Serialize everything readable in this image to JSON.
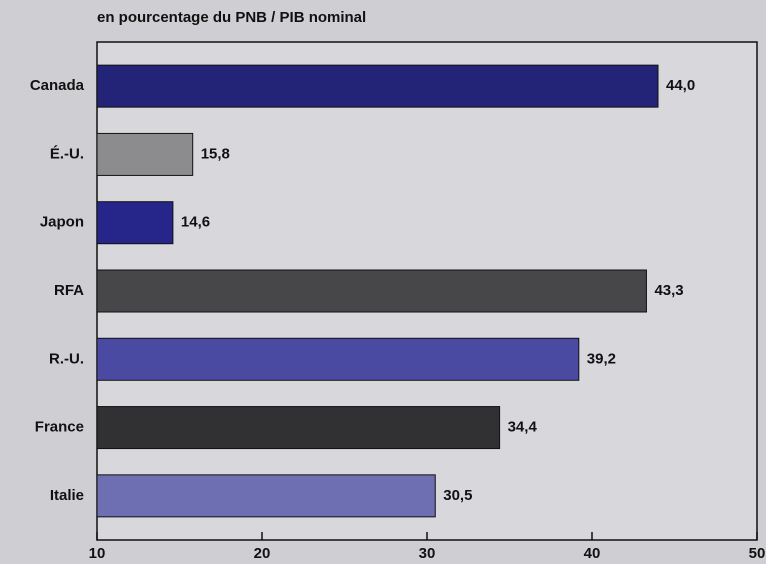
{
  "chart_data": {
    "type": "hbar",
    "title": "en pourcentage du PNB / PIB nominal",
    "categories": [
      "Canada",
      "É.-U.",
      "Japon",
      "RFA",
      "R.-U.",
      "France",
      "Italie"
    ],
    "values": [
      44.0,
      15.8,
      14.6,
      43.3,
      39.2,
      34.4,
      30.5
    ],
    "value_labels": [
      "44,0",
      "15,8",
      "14,6",
      "43,3",
      "39,2",
      "34,4",
      "30,5"
    ],
    "colors": [
      "#232378",
      "#8c8c8e",
      "#26268a",
      "#474749",
      "#4a4aa2",
      "#313133",
      "#6e6eb2"
    ],
    "xlim": [
      10,
      50
    ],
    "xticks": [
      10,
      20,
      30,
      40,
      50
    ]
  }
}
